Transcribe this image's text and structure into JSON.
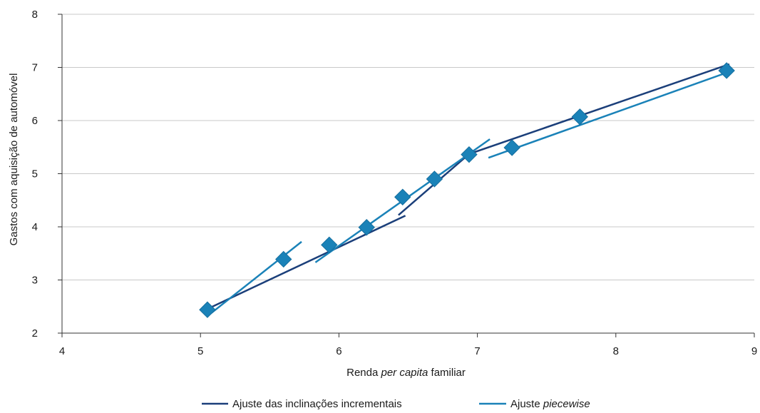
{
  "chart_data": {
    "type": "scatter",
    "xlabel_parts": [
      "Renda ",
      "per capita",
      " familiar"
    ],
    "ylabel": "Gastos com aquisição de automóvel",
    "xlim": [
      4,
      9
    ],
    "ylim": [
      2,
      8
    ],
    "xticks": [
      4,
      5,
      6,
      7,
      8,
      9
    ],
    "yticks": [
      2,
      3,
      4,
      5,
      6,
      7,
      8
    ],
    "grid": "horizontal",
    "legend_position": "bottom",
    "colors": {
      "incremental": "#1b3f7a",
      "piecewise": "#1a82b8",
      "points": "#1a82b8",
      "grid": "#c8c8c8",
      "axis": "#333333"
    },
    "points": [
      {
        "x": 5.05,
        "y": 2.44
      },
      {
        "x": 5.6,
        "y": 3.39
      },
      {
        "x": 5.93,
        "y": 3.66
      },
      {
        "x": 6.2,
        "y": 3.99
      },
      {
        "x": 6.46,
        "y": 4.56
      },
      {
        "x": 6.69,
        "y": 4.9
      },
      {
        "x": 6.94,
        "y": 5.36
      },
      {
        "x": 7.25,
        "y": 5.49
      },
      {
        "x": 7.74,
        "y": 6.07
      },
      {
        "x": 8.8,
        "y": 6.94
      }
    ],
    "series": [
      {
        "name_parts": [
          "Ajuste das inclinações incrementais"
        ],
        "segments": [
          [
            [
              5.03,
              2.43
            ],
            [
              6.48,
              4.21
            ]
          ],
          [
            [
              6.43,
              4.22
            ],
            [
              6.94,
              5.37
            ],
            [
              8.82,
              7.06
            ]
          ]
        ]
      },
      {
        "name_parts": [
          "Ajuste ",
          "piecewise"
        ],
        "segments": [
          [
            [
              5.05,
              2.32
            ],
            [
              5.73,
              3.72
            ]
          ],
          [
            [
              5.83,
              3.33
            ],
            [
              7.09,
              5.65
            ]
          ],
          [
            [
              7.08,
              5.3
            ],
            [
              8.8,
              6.9
            ]
          ]
        ]
      }
    ]
  }
}
